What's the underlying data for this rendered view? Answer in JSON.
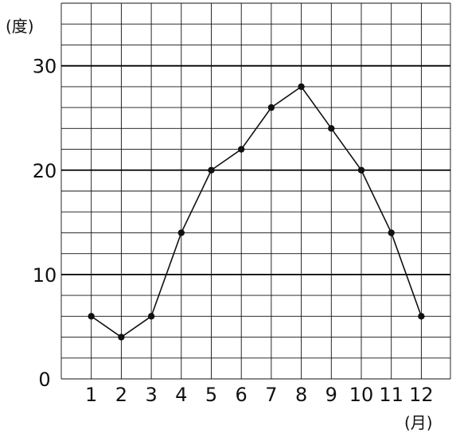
{
  "chart_data": {
    "type": "line",
    "title": "",
    "x_unit_label": "(月)",
    "y_unit_label": "(度)",
    "categories": [
      "1",
      "2",
      "3",
      "4",
      "5",
      "6",
      "7",
      "8",
      "9",
      "10",
      "11",
      "12"
    ],
    "series": [
      {
        "values": [
          6,
          4,
          6,
          14,
          20,
          22,
          26,
          28,
          24,
          20,
          14,
          6
        ]
      }
    ],
    "y_ticks": [
      "0",
      "10",
      "20",
      "30"
    ],
    "ylim": [
      0,
      36
    ],
    "grid": true,
    "colors": {
      "line": "#111111",
      "grid": "#111111",
      "major_grid": "#000000"
    }
  }
}
